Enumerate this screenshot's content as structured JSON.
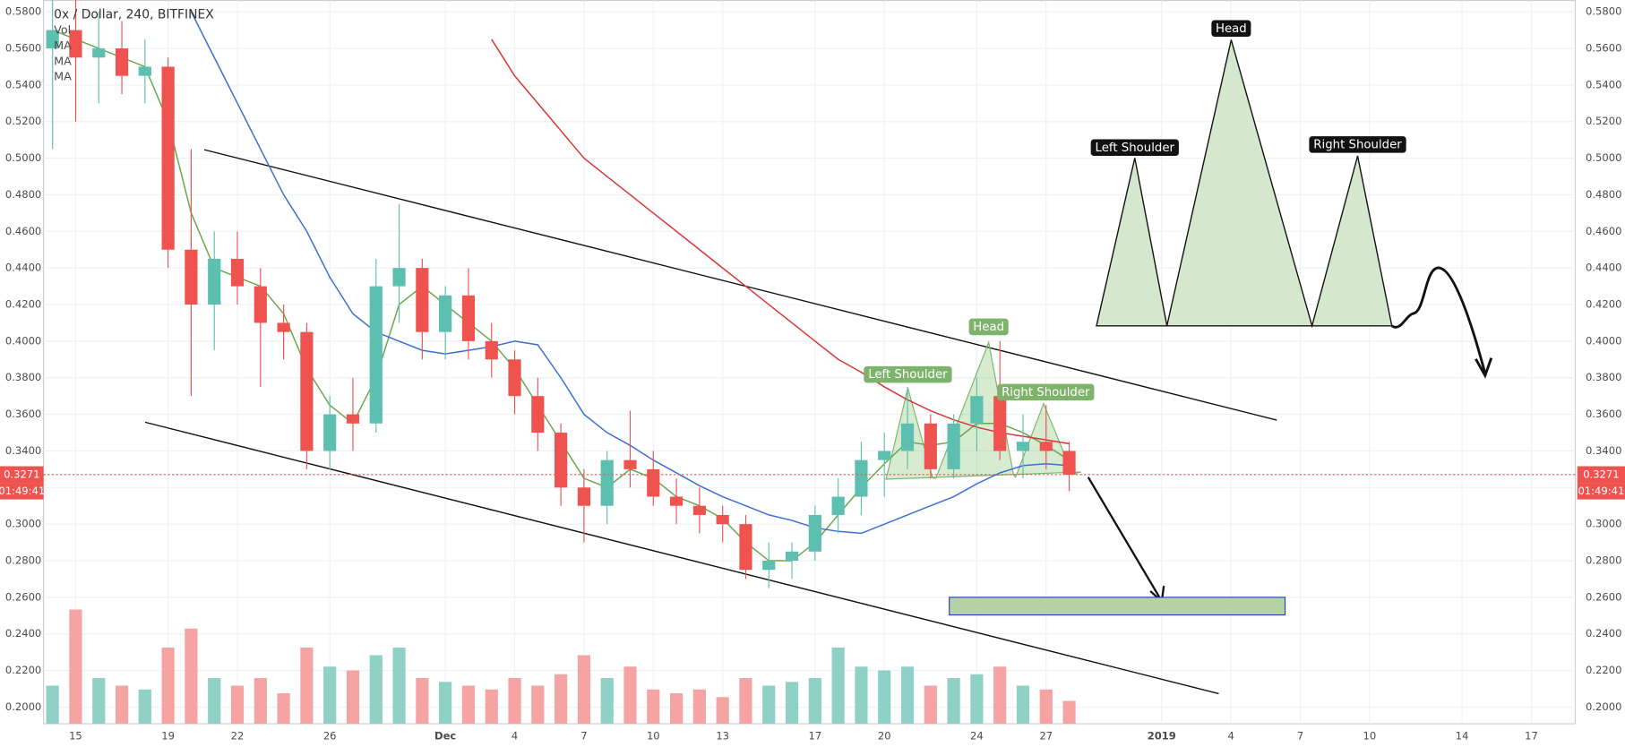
{
  "chart_data": {
    "type": "candlestick",
    "title": "0x / Dollar, 240, BITFINEX",
    "x": [
      14,
      15,
      16,
      17,
      18,
      19,
      20,
      21,
      22,
      23,
      24,
      25,
      26,
      27,
      28,
      29,
      30,
      31,
      32,
      33,
      34,
      35,
      36,
      37,
      38,
      39,
      40,
      41,
      42,
      43,
      44,
      45,
      46,
      47,
      48,
      49,
      50,
      51,
      52,
      53,
      54,
      55,
      56,
      57,
      58
    ],
    "open": [
      0.56,
      0.57,
      0.555,
      0.56,
      0.545,
      0.55,
      0.45,
      0.42,
      0.445,
      0.43,
      0.41,
      0.405,
      0.34,
      0.36,
      0.355,
      0.43,
      0.44,
      0.405,
      0.425,
      0.4,
      0.39,
      0.37,
      0.35,
      0.32,
      0.31,
      0.335,
      0.33,
      0.315,
      0.31,
      0.305,
      0.3,
      0.275,
      0.28,
      0.285,
      0.305,
      0.315,
      0.335,
      0.34,
      0.355,
      0.33,
      0.355,
      0.37,
      0.34,
      0.345,
      0.34
    ],
    "high": [
      0.59,
      0.6,
      0.58,
      0.575,
      0.565,
      0.555,
      0.505,
      0.46,
      0.46,
      0.44,
      0.42,
      0.41,
      0.37,
      0.38,
      0.445,
      0.475,
      0.445,
      0.43,
      0.44,
      0.41,
      0.395,
      0.38,
      0.355,
      0.33,
      0.34,
      0.362,
      0.34,
      0.325,
      0.32,
      0.31,
      0.305,
      0.29,
      0.29,
      0.31,
      0.325,
      0.345,
      0.35,
      0.375,
      0.36,
      0.36,
      0.38,
      0.4,
      0.36,
      0.365,
      0.345
    ],
    "low": [
      0.505,
      0.52,
      0.53,
      0.535,
      0.53,
      0.44,
      0.37,
      0.395,
      0.42,
      0.375,
      0.39,
      0.33,
      0.33,
      0.34,
      0.35,
      0.41,
      0.39,
      0.39,
      0.39,
      0.38,
      0.36,
      0.34,
      0.31,
      0.29,
      0.3,
      0.32,
      0.31,
      0.3,
      0.295,
      0.29,
      0.27,
      0.265,
      0.27,
      0.28,
      0.295,
      0.305,
      0.315,
      0.33,
      0.325,
      0.325,
      0.34,
      0.335,
      0.325,
      0.33,
      0.318
    ],
    "close": [
      0.57,
      0.555,
      0.56,
      0.545,
      0.55,
      0.45,
      0.42,
      0.445,
      0.43,
      0.41,
      0.405,
      0.34,
      0.36,
      0.355,
      0.43,
      0.44,
      0.405,
      0.425,
      0.4,
      0.39,
      0.37,
      0.35,
      0.32,
      0.31,
      0.335,
      0.33,
      0.315,
      0.31,
      0.305,
      0.3,
      0.275,
      0.28,
      0.285,
      0.305,
      0.315,
      0.335,
      0.34,
      0.355,
      0.33,
      0.355,
      0.37,
      0.34,
      0.345,
      0.34,
      0.327
    ],
    "volume": {
      "name": "Vol",
      "values": [
        0.01,
        0.03,
        0.012,
        0.01,
        0.009,
        0.02,
        0.025,
        0.012,
        0.01,
        0.012,
        0.008,
        0.02,
        0.015,
        0.014,
        0.018,
        0.02,
        0.012,
        0.011,
        0.01,
        0.009,
        0.012,
        0.01,
        0.013,
        0.018,
        0.012,
        0.015,
        0.009,
        0.008,
        0.009,
        0.007,
        0.012,
        0.01,
        0.011,
        0.012,
        0.02,
        0.015,
        0.014,
        0.015,
        0.01,
        0.012,
        0.013,
        0.015,
        0.01,
        0.009,
        0.006
      ],
      "up_color": "#8fd1c7",
      "down_color": "#f5a3a3",
      "axis": "y2"
    },
    "series": [
      {
        "name": "MA",
        "color": "#6aa84f",
        "values": [
          0.57,
          0.565,
          0.56,
          0.555,
          0.55,
          0.52,
          0.47,
          0.44,
          0.435,
          0.43,
          0.415,
          0.385,
          0.365,
          0.355,
          0.38,
          0.42,
          0.43,
          0.42,
          0.41,
          0.4,
          0.385,
          0.365,
          0.345,
          0.325,
          0.32,
          0.33,
          0.325,
          0.315,
          0.31,
          0.303,
          0.29,
          0.28,
          0.28,
          0.29,
          0.305,
          0.32,
          0.333,
          0.345,
          0.343,
          0.345,
          0.355,
          0.355,
          0.35,
          0.343,
          0.335
        ]
      },
      {
        "name": "MA",
        "color": "#3d6fd1",
        "values": [
          null,
          null,
          null,
          null,
          null,
          null,
          0.58,
          0.555,
          0.53,
          0.505,
          0.48,
          0.46,
          0.435,
          0.415,
          0.405,
          0.4,
          0.395,
          0.393,
          0.395,
          0.397,
          0.4,
          0.398,
          0.38,
          0.36,
          0.35,
          0.343,
          0.335,
          0.328,
          0.321,
          0.315,
          0.31,
          0.305,
          0.302,
          0.298,
          0.296,
          0.295,
          0.3,
          0.305,
          0.31,
          0.315,
          0.322,
          0.328,
          0.332,
          0.333,
          0.332
        ]
      },
      {
        "name": "MA",
        "color": "#d93636",
        "values": [
          null,
          null,
          null,
          null,
          null,
          null,
          null,
          null,
          null,
          null,
          null,
          null,
          null,
          null,
          null,
          null,
          null,
          null,
          null,
          0.565,
          0.545,
          0.53,
          0.515,
          0.5,
          0.49,
          0.48,
          0.47,
          0.46,
          0.45,
          0.44,
          0.43,
          0.42,
          0.41,
          0.4,
          0.39,
          0.383,
          0.375,
          0.368,
          0.362,
          0.357,
          0.353,
          0.35,
          0.348,
          0.346,
          0.344
        ]
      }
    ],
    "up_color": "#5dbfb0",
    "down_color": "#ef5350",
    "ylim": [
      0.1909,
      0.5862
    ],
    "yticks": [
      {
        "value": 0.2,
        "label": "0.2000"
      },
      {
        "value": 0.22,
        "label": "0.2200"
      },
      {
        "value": 0.24,
        "label": "0.2400"
      },
      {
        "value": 0.26,
        "label": "0.2600"
      },
      {
        "value": 0.28,
        "label": "0.2800"
      },
      {
        "value": 0.3,
        "label": "0.3000"
      },
      {
        "value": 0.32,
        "label": "0.3200"
      },
      {
        "value": 0.34,
        "label": "0.3400"
      },
      {
        "value": 0.36,
        "label": "0.3600"
      },
      {
        "value": 0.38,
        "label": "0.3800"
      },
      {
        "value": 0.4,
        "label": "0.4000"
      },
      {
        "value": 0.42,
        "label": "0.4200"
      },
      {
        "value": 0.44,
        "label": "0.4400"
      },
      {
        "value": 0.46,
        "label": "0.4600"
      },
      {
        "value": 0.48,
        "label": "0.4800"
      },
      {
        "value": 0.5,
        "label": "0.5000"
      },
      {
        "value": 0.52,
        "label": "0.5200"
      },
      {
        "value": 0.54,
        "label": "0.5400"
      },
      {
        "value": 0.56,
        "label": "0.5600"
      },
      {
        "value": 0.58,
        "label": "0.5800"
      }
    ],
    "y2lim": [
      0,
      0.19
    ],
    "xlim": [
      13.61,
      79.9
    ],
    "xticks": [
      15,
      19,
      22,
      26,
      {
        "value": 31,
        "label": "Dec"
      },
      {
        "value": 34,
        "label": "4"
      },
      {
        "value": 37,
        "label": "7"
      },
      {
        "value": 40,
        "label": "10"
      },
      {
        "value": 43,
        "label": "13"
      },
      {
        "value": 47,
        "label": "17"
      },
      {
        "value": 50,
        "label": "20"
      },
      {
        "value": 54,
        "label": "24"
      },
      {
        "value": 57,
        "label": "27"
      },
      {
        "value": 62,
        "label": "2019"
      },
      {
        "value": 65,
        "label": "4"
      },
      {
        "value": 68,
        "label": "7"
      },
      {
        "value": 71,
        "label": "10"
      },
      {
        "value": 75,
        "label": "14"
      },
      {
        "value": 78,
        "label": "17"
      }
    ],
    "grid": true,
    "last_price": 0.3271,
    "last_price_color": "#ef5350",
    "countdown": "01:49:41",
    "legend": [
      "Vol",
      "MA",
      "MA",
      "MA"
    ],
    "annotations": [
      "Left Shoulder",
      "Head",
      "Right Shoulder",
      "Left Shoulder",
      "Head",
      "Right Shoulder"
    ]
  }
}
